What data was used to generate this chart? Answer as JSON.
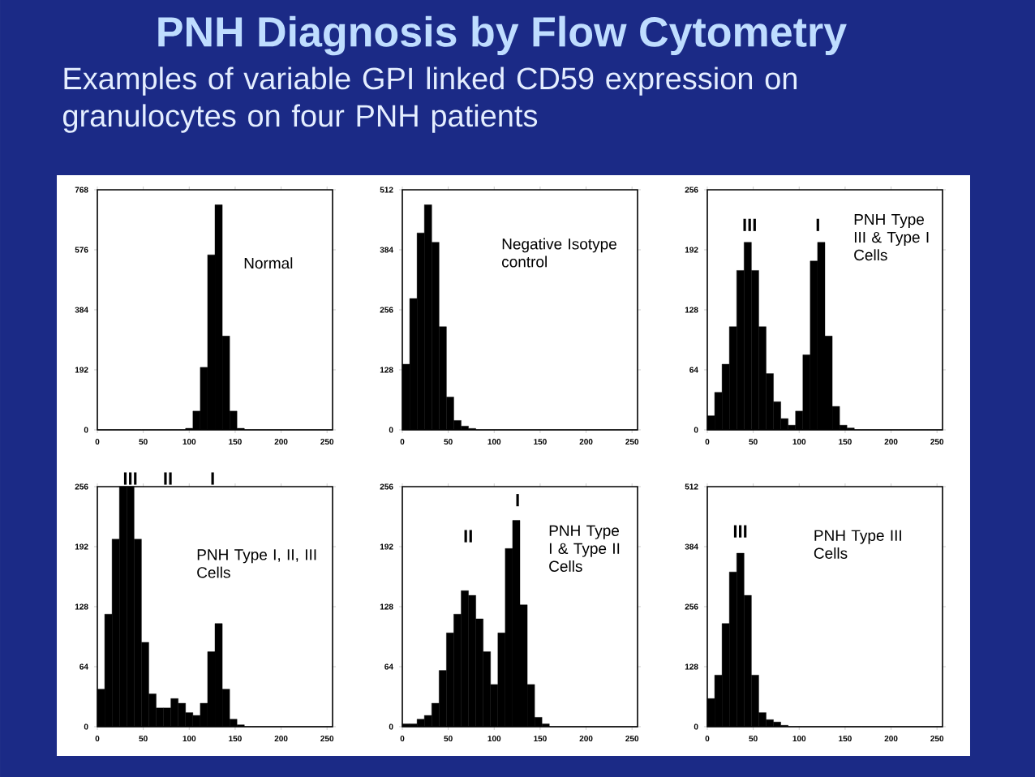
{
  "chart_data": [
    {
      "type": "histogram",
      "title": "PNH Diagnosis by Flow Cytometry",
      "subtitle": "Examples of variable GPI linked CD59 expression on granulocytes on four PNH patients",
      "color": "#000000",
      "bins": [
        0,
        8,
        16,
        24,
        32,
        40,
        48,
        56,
        64,
        72,
        80,
        88,
        96,
        104,
        112,
        120,
        128,
        136,
        144,
        152,
        160,
        168,
        176,
        184,
        192,
        200,
        208,
        216,
        224,
        232,
        240,
        248,
        256
      ],
      "values": [
        0,
        0,
        0,
        0,
        0,
        0,
        0,
        0,
        0,
        0,
        0,
        0,
        5,
        60,
        200,
        560,
        720,
        300,
        60,
        5,
        0,
        0,
        0,
        0,
        0,
        0,
        0,
        0,
        0,
        0,
        0,
        0
      ],
      "xlim": [
        0,
        256
      ],
      "xticks": [
        0,
        50,
        100,
        150,
        200,
        250
      ],
      "ylim": [
        0,
        768
      ],
      "yticks": [
        0,
        192,
        384,
        576,
        768
      ],
      "annotations": [
        "Normal"
      ]
    },
    {
      "type": "histogram",
      "color": "#000000",
      "bins": [
        0,
        8,
        16,
        24,
        32,
        40,
        48,
        56,
        64,
        72,
        80,
        88,
        96,
        104,
        112,
        120,
        128,
        136,
        144,
        152,
        160,
        168,
        176,
        184,
        192,
        200,
        208,
        216,
        224,
        232,
        240,
        248,
        256
      ],
      "values": [
        140,
        280,
        420,
        480,
        400,
        220,
        70,
        20,
        8,
        3,
        0,
        0,
        0,
        0,
        0,
        0,
        0,
        0,
        0,
        0,
        0,
        0,
        0,
        0,
        0,
        0,
        0,
        0,
        0,
        0,
        0,
        0
      ],
      "xlim": [
        0,
        256
      ],
      "xticks": [
        0,
        50,
        100,
        150,
        200,
        250
      ],
      "ylim": [
        0,
        512
      ],
      "yticks": [
        0,
        128,
        256,
        384,
        512
      ],
      "annotations": [
        "Negative Isotype control"
      ]
    },
    {
      "type": "histogram",
      "color": "#000000",
      "bins": [
        0,
        8,
        16,
        24,
        32,
        40,
        48,
        56,
        64,
        72,
        80,
        88,
        96,
        104,
        112,
        120,
        128,
        136,
        144,
        152,
        160,
        168,
        176,
        184,
        192,
        200,
        208,
        216,
        224,
        232,
        240,
        248,
        256
      ],
      "values": [
        15,
        40,
        70,
        110,
        170,
        200,
        170,
        110,
        60,
        30,
        12,
        5,
        20,
        80,
        180,
        200,
        100,
        25,
        5,
        2,
        0,
        0,
        0,
        0,
        0,
        0,
        0,
        0,
        0,
        0,
        0,
        0
      ],
      "xlim": [
        0,
        256
      ],
      "xticks": [
        0,
        50,
        100,
        150,
        200,
        250
      ],
      "ylim": [
        0,
        256
      ],
      "yticks": [
        0,
        64,
        128,
        192,
        256
      ],
      "annotations": [
        "III",
        "I",
        "PNH Type III & Type I Cells"
      ]
    },
    {
      "type": "histogram",
      "color": "#000000",
      "bins": [
        0,
        8,
        16,
        24,
        32,
        40,
        48,
        56,
        64,
        72,
        80,
        88,
        96,
        104,
        112,
        120,
        128,
        136,
        144,
        152,
        160,
        168,
        176,
        184,
        192,
        200,
        208,
        216,
        224,
        232,
        240,
        248,
        256
      ],
      "values": [
        40,
        120,
        200,
        256,
        256,
        200,
        90,
        35,
        20,
        20,
        30,
        25,
        15,
        12,
        25,
        80,
        110,
        40,
        8,
        2,
        0,
        0,
        0,
        0,
        0,
        0,
        0,
        0,
        0,
        0,
        0,
        0
      ],
      "xlim": [
        0,
        256
      ],
      "xticks": [
        0,
        50,
        100,
        150,
        200,
        250
      ],
      "ylim": [
        0,
        256
      ],
      "yticks": [
        0,
        64,
        128,
        192,
        256
      ],
      "annotations": [
        "III",
        "II",
        "I",
        "PNH Type I, II, III Cells"
      ]
    },
    {
      "type": "histogram",
      "color": "#000000",
      "bins": [
        0,
        8,
        16,
        24,
        32,
        40,
        48,
        56,
        64,
        72,
        80,
        88,
        96,
        104,
        112,
        120,
        128,
        136,
        144,
        152,
        160,
        168,
        176,
        184,
        192,
        200,
        208,
        216,
        224,
        232,
        240,
        248,
        256
      ],
      "values": [
        3,
        3,
        8,
        12,
        25,
        60,
        100,
        120,
        145,
        140,
        115,
        80,
        45,
        100,
        190,
        220,
        130,
        45,
        10,
        3,
        0,
        0,
        0,
        0,
        0,
        0,
        0,
        0,
        0,
        0,
        0,
        0
      ],
      "xlim": [
        0,
        256
      ],
      "xticks": [
        0,
        50,
        100,
        150,
        200,
        250
      ],
      "ylim": [
        0,
        256
      ],
      "yticks": [
        0,
        64,
        128,
        192,
        256
      ],
      "annotations": [
        "II",
        "I",
        "PNH Type I & Type II Cells"
      ]
    },
    {
      "type": "histogram",
      "color": "#000000",
      "bins": [
        0,
        8,
        16,
        24,
        32,
        40,
        48,
        56,
        64,
        72,
        80,
        88,
        96,
        104,
        112,
        120,
        128,
        136,
        144,
        152,
        160,
        168,
        176,
        184,
        192,
        200,
        208,
        216,
        224,
        232,
        240,
        248,
        256
      ],
      "values": [
        60,
        110,
        220,
        330,
        370,
        280,
        110,
        30,
        15,
        10,
        3,
        0,
        0,
        0,
        0,
        0,
        0,
        0,
        0,
        0,
        0,
        0,
        0,
        0,
        0,
        0,
        0,
        0,
        0,
        0,
        0,
        0
      ],
      "xlim": [
        0,
        256
      ],
      "xticks": [
        0,
        50,
        100,
        150,
        200,
        250
      ],
      "ylim": [
        0,
        512
      ],
      "yticks": [
        0,
        128,
        256,
        384,
        512
      ],
      "annotations": [
        "III",
        "PNH Type III Cells"
      ]
    }
  ]
}
